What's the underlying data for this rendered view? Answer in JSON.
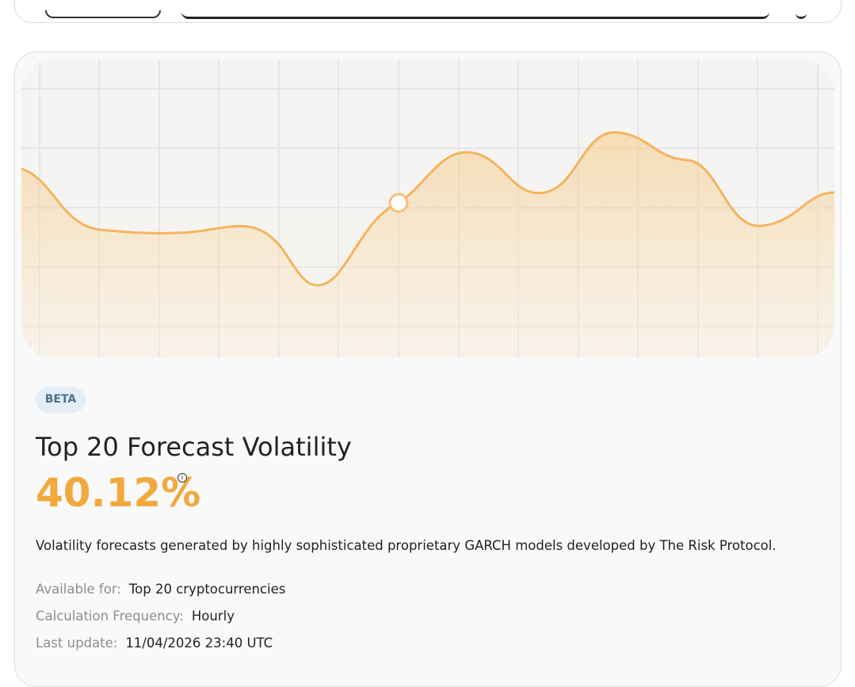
{
  "badge": "BETA",
  "title": "Top 20 Forecast Volatility",
  "value": "40.12%",
  "description": "Volatility forecasts generated by highly sophisticated proprietary GARCH models developed by The Risk Protocol.",
  "details": [
    {
      "label": "Available for:",
      "value": "Top 20 cryptocurrencies"
    },
    {
      "label": "Calculation Frequency:",
      "value": "Hourly"
    },
    {
      "label": "Last update:",
      "value": "11/04/2026 23:40 UTC"
    }
  ]
}
